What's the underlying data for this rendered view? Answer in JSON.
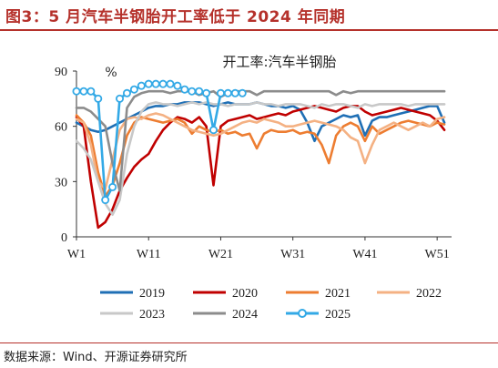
{
  "figure_title": "图3：5 月汽车半钢胎开工率低于 2024 年同期",
  "source_note": "数据来源：Wind、开源证券研究所",
  "chart_data": {
    "type": "line",
    "title": "开工率:汽车半钢胎",
    "ylabel": "%",
    "xlabel": "",
    "ylim": [
      0,
      90
    ],
    "xlim": [
      1,
      53
    ],
    "y_ticks": [
      "0",
      "30",
      "60",
      "90"
    ],
    "x_ticks": [
      {
        "label": "W1",
        "value": 1
      },
      {
        "label": "W11",
        "value": 11
      },
      {
        "label": "W21",
        "value": 21
      },
      {
        "label": "W31",
        "value": 31
      },
      {
        "label": "W41",
        "value": 41
      },
      {
        "label": "W51",
        "value": 51
      }
    ],
    "legend_position": "bottom",
    "series": [
      {
        "name": "2019",
        "color": "#1f6fb5",
        "marker": "none",
        "x": [
          1,
          2,
          3,
          4,
          5,
          6,
          7,
          8,
          9,
          10,
          11,
          12,
          13,
          14,
          15,
          16,
          17,
          18,
          19,
          20,
          21,
          22,
          23,
          24,
          25,
          26,
          27,
          28,
          29,
          30,
          31,
          32,
          33,
          34,
          35,
          36,
          37,
          38,
          39,
          40,
          41,
          42,
          43,
          44,
          45,
          46,
          47,
          48,
          49,
          50,
          51,
          52
        ],
        "y": [
          62,
          60,
          58,
          57,
          58,
          60,
          62,
          64,
          66,
          68,
          70,
          71,
          71,
          72,
          72,
          73,
          73,
          73,
          72,
          71,
          72,
          73,
          72,
          72,
          72,
          73,
          72,
          71,
          71,
          70,
          71,
          69,
          62,
          52,
          60,
          62,
          64,
          66,
          65,
          66,
          55,
          63,
          65,
          65,
          66,
          67,
          68,
          69,
          70,
          71,
          71,
          62
        ]
      },
      {
        "name": "2020",
        "color": "#c00000",
        "marker": "none",
        "x": [
          1,
          2,
          3,
          4,
          5,
          6,
          7,
          8,
          9,
          10,
          11,
          12,
          13,
          14,
          15,
          16,
          17,
          18,
          19,
          20,
          21,
          22,
          23,
          24,
          25,
          26,
          27,
          28,
          29,
          30,
          31,
          32,
          33,
          34,
          35,
          36,
          37,
          38,
          39,
          40,
          41,
          42,
          43,
          44,
          45,
          46,
          47,
          48,
          49,
          50,
          51,
          52
        ],
        "y": [
          65,
          60,
          30,
          5,
          8,
          15,
          25,
          32,
          38,
          42,
          45,
          52,
          58,
          62,
          65,
          64,
          62,
          65,
          60,
          28,
          60,
          63,
          64,
          65,
          66,
          64,
          65,
          66,
          67,
          66,
          68,
          69,
          70,
          71,
          70,
          69,
          68,
          70,
          71,
          71,
          68,
          66,
          67,
          68,
          69,
          70,
          69,
          68,
          67,
          66,
          63,
          58
        ]
      },
      {
        "name": "2021",
        "color": "#ed7d31",
        "marker": "none",
        "x": [
          1,
          2,
          3,
          4,
          5,
          6,
          7,
          8,
          9,
          10,
          11,
          12,
          13,
          14,
          15,
          16,
          17,
          18,
          19,
          20,
          21,
          22,
          23,
          24,
          25,
          26,
          27,
          28,
          29,
          30,
          31,
          32,
          33,
          34,
          35,
          36,
          37,
          38,
          39,
          40,
          41,
          42,
          43,
          44,
          45,
          46,
          47,
          48,
          49,
          50,
          51,
          52
        ],
        "y": [
          66,
          62,
          55,
          35,
          22,
          28,
          40,
          55,
          62,
          65,
          64,
          63,
          62,
          63,
          64,
          62,
          56,
          60,
          58,
          57,
          58,
          56,
          57,
          55,
          56,
          48,
          56,
          58,
          57,
          57,
          58,
          56,
          57,
          56,
          50,
          40,
          55,
          60,
          62,
          60,
          52,
          60,
          56,
          58,
          60,
          62,
          63,
          62,
          61,
          60,
          62,
          61
        ]
      },
      {
        "name": "2022",
        "color": "#f4b183",
        "marker": "none",
        "x": [
          1,
          2,
          3,
          4,
          5,
          6,
          7,
          8,
          9,
          10,
          11,
          12,
          13,
          14,
          15,
          16,
          17,
          18,
          19,
          20,
          21,
          22,
          23,
          24,
          25,
          26,
          27,
          28,
          29,
          30,
          31,
          32,
          33,
          34,
          35,
          36,
          37,
          38,
          39,
          40,
          41,
          42,
          43,
          44,
          45,
          46,
          47,
          48,
          49,
          50,
          51,
          52
        ],
        "y": [
          64,
          62,
          50,
          30,
          26,
          42,
          58,
          64,
          65,
          64,
          66,
          67,
          66,
          64,
          62,
          60,
          58,
          57,
          56,
          55,
          56,
          58,
          60,
          62,
          63,
          62,
          64,
          63,
          62,
          60,
          60,
          61,
          62,
          63,
          62,
          61,
          60,
          58,
          54,
          52,
          40,
          50,
          58,
          60,
          62,
          60,
          58,
          60,
          62,
          60,
          64,
          65
        ]
      },
      {
        "name": "2023",
        "color": "#c8c8c8",
        "marker": "none",
        "x": [
          1,
          2,
          3,
          4,
          5,
          6,
          7,
          8,
          9,
          10,
          11,
          12,
          13,
          14,
          15,
          16,
          17,
          18,
          19,
          20,
          21,
          22,
          23,
          24,
          25,
          26,
          27,
          28,
          29,
          30,
          31,
          32,
          33,
          34,
          35,
          36,
          37,
          38,
          39,
          40,
          41,
          42,
          43,
          44,
          45,
          46,
          47,
          48,
          49,
          50,
          51,
          52
        ],
        "y": [
          52,
          48,
          42,
          30,
          18,
          12,
          20,
          45,
          60,
          68,
          72,
          73,
          72,
          72,
          71,
          72,
          73,
          72,
          73,
          72,
          72,
          71,
          72,
          72,
          72,
          73,
          72,
          72,
          71,
          72,
          72,
          72,
          71,
          70,
          72,
          71,
          72,
          72,
          71,
          70,
          72,
          71,
          72,
          72,
          72,
          72,
          71,
          72,
          72,
          72,
          72,
          72
        ]
      },
      {
        "name": "2024",
        "color": "#8c8c8c",
        "marker": "none",
        "x": [
          1,
          2,
          3,
          4,
          5,
          6,
          7,
          8,
          9,
          10,
          11,
          12,
          13,
          14,
          15,
          16,
          17,
          18,
          19,
          20,
          21,
          22,
          23,
          24,
          25,
          26,
          27,
          28,
          29,
          30,
          31,
          32,
          33,
          34,
          35,
          36,
          37,
          38,
          39,
          40,
          41,
          42,
          43,
          44,
          45,
          46,
          47,
          48,
          49,
          50,
          51,
          52
        ],
        "y": [
          70,
          70,
          68,
          64,
          60,
          40,
          25,
          70,
          76,
          78,
          79,
          79,
          79,
          78,
          79,
          79,
          79,
          77,
          78,
          79,
          76,
          78,
          79,
          79,
          79,
          77,
          79,
          79,
          79,
          79,
          79,
          79,
          79,
          79,
          79,
          79,
          77,
          79,
          78,
          79,
          79,
          79,
          79,
          79,
          79,
          79,
          79,
          79,
          79,
          79,
          79,
          79
        ]
      },
      {
        "name": "2025",
        "color": "#33a9e6",
        "marker": "circle",
        "x": [
          1,
          2,
          3,
          4,
          5,
          6,
          7,
          8,
          9,
          10,
          11,
          12,
          13,
          14,
          15,
          16,
          17,
          18,
          19,
          20,
          21,
          22,
          23,
          24
        ],
        "y": [
          79,
          79,
          79,
          75,
          20,
          27,
          75,
          78,
          80,
          82,
          83,
          83,
          83,
          83,
          82,
          80,
          79,
          79,
          78,
          58,
          78,
          78,
          78,
          78
        ]
      }
    ]
  }
}
